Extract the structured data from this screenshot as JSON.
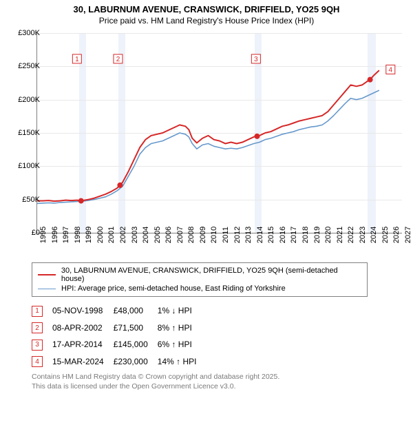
{
  "header": {
    "title": "30, LABURNUM AVENUE, CRANSWICK, DRIFFIELD, YO25 9QH",
    "subtitle": "Price paid vs. HM Land Registry's House Price Index (HPI)"
  },
  "chart": {
    "type": "line",
    "background_color": "#ffffff",
    "grid_color": "#e8e8e8",
    "axis_color": "#808080",
    "xlim": [
      1995,
      2027
    ],
    "ylim": [
      0,
      300000
    ],
    "ytick_step": 50000,
    "yticks": [
      {
        "v": 0,
        "label": "£0"
      },
      {
        "v": 50000,
        "label": "£50K"
      },
      {
        "v": 100000,
        "label": "£100K"
      },
      {
        "v": 150000,
        "label": "£150K"
      },
      {
        "v": 200000,
        "label": "£200K"
      },
      {
        "v": 250000,
        "label": "£250K"
      },
      {
        "v": 300000,
        "label": "£300K"
      }
    ],
    "xticks": [
      1995,
      1996,
      1997,
      1998,
      1999,
      2000,
      2001,
      2002,
      2003,
      2004,
      2005,
      2006,
      2007,
      2008,
      2009,
      2010,
      2011,
      2012,
      2013,
      2014,
      2015,
      2016,
      2017,
      2018,
      2019,
      2020,
      2021,
      2022,
      2023,
      2024,
      2025,
      2026,
      2027
    ],
    "shade_bands": [
      {
        "from": 1998.7,
        "to": 1999.3
      },
      {
        "from": 2002.1,
        "to": 2002.7
      },
      {
        "from": 2014.1,
        "to": 2014.7
      },
      {
        "from": 2024.0,
        "to": 2024.7
      }
    ],
    "series": [
      {
        "name": "price_paid",
        "label": "30, LABURNUM AVENUE, CRANSWICK, DRIFFIELD, YO25 9QH (semi-detached house)",
        "color": "#d62728",
        "line_width": 2,
        "points": [
          [
            1995.0,
            48000
          ],
          [
            1995.5,
            48000
          ],
          [
            1996.0,
            48500
          ],
          [
            1996.5,
            47500
          ],
          [
            1997.0,
            48000
          ],
          [
            1997.5,
            49000
          ],
          [
            1998.0,
            48500
          ],
          [
            1998.5,
            49000
          ],
          [
            1998.85,
            48000
          ],
          [
            1999.0,
            48500
          ],
          [
            1999.5,
            50000
          ],
          [
            2000.0,
            52000
          ],
          [
            2000.5,
            55000
          ],
          [
            2001.0,
            58000
          ],
          [
            2001.5,
            62000
          ],
          [
            2002.0,
            67000
          ],
          [
            2002.27,
            71500
          ],
          [
            2002.5,
            76000
          ],
          [
            2003.0,
            92000
          ],
          [
            2003.5,
            110000
          ],
          [
            2004.0,
            128000
          ],
          [
            2004.5,
            140000
          ],
          [
            2005.0,
            146000
          ],
          [
            2005.5,
            148000
          ],
          [
            2006.0,
            150000
          ],
          [
            2006.5,
            154000
          ],
          [
            2007.0,
            158000
          ],
          [
            2007.5,
            162000
          ],
          [
            2008.0,
            160000
          ],
          [
            2008.3,
            155000
          ],
          [
            2008.6,
            142000
          ],
          [
            2009.0,
            135000
          ],
          [
            2009.5,
            142000
          ],
          [
            2010.0,
            146000
          ],
          [
            2010.5,
            140000
          ],
          [
            2011.0,
            138000
          ],
          [
            2011.5,
            134000
          ],
          [
            2012.0,
            136000
          ],
          [
            2012.5,
            134000
          ],
          [
            2013.0,
            136000
          ],
          [
            2013.5,
            140000
          ],
          [
            2014.0,
            144000
          ],
          [
            2014.29,
            145000
          ],
          [
            2014.5,
            146000
          ],
          [
            2015.0,
            150000
          ],
          [
            2015.5,
            152000
          ],
          [
            2016.0,
            156000
          ],
          [
            2016.5,
            160000
          ],
          [
            2017.0,
            162000
          ],
          [
            2017.5,
            165000
          ],
          [
            2018.0,
            168000
          ],
          [
            2018.5,
            170000
          ],
          [
            2019.0,
            172000
          ],
          [
            2019.5,
            174000
          ],
          [
            2020.0,
            176000
          ],
          [
            2020.5,
            182000
          ],
          [
            2021.0,
            192000
          ],
          [
            2021.5,
            202000
          ],
          [
            2022.0,
            212000
          ],
          [
            2022.5,
            222000
          ],
          [
            2023.0,
            220000
          ],
          [
            2023.5,
            222000
          ],
          [
            2024.0,
            228000
          ],
          [
            2024.2,
            230000
          ],
          [
            2024.5,
            236000
          ],
          [
            2025.0,
            244000
          ]
        ]
      },
      {
        "name": "hpi",
        "label": "HPI: Average price, semi-detached house, East Riding of Yorkshire",
        "color": "#6699cc",
        "line_width": 1.6,
        "points": [
          [
            1995.0,
            44000
          ],
          [
            1995.5,
            44500
          ],
          [
            1996.0,
            45000
          ],
          [
            1996.5,
            44500
          ],
          [
            1997.0,
            45500
          ],
          [
            1997.5,
            46000
          ],
          [
            1998.0,
            46500
          ],
          [
            1998.5,
            47000
          ],
          [
            1999.0,
            47500
          ],
          [
            1999.5,
            48500
          ],
          [
            2000.0,
            50000
          ],
          [
            2000.5,
            52000
          ],
          [
            2001.0,
            54000
          ],
          [
            2001.5,
            58000
          ],
          [
            2002.0,
            63000
          ],
          [
            2002.5,
            70000
          ],
          [
            2003.0,
            85000
          ],
          [
            2003.5,
            100000
          ],
          [
            2004.0,
            118000
          ],
          [
            2004.5,
            128000
          ],
          [
            2005.0,
            134000
          ],
          [
            2005.5,
            136000
          ],
          [
            2006.0,
            138000
          ],
          [
            2006.5,
            142000
          ],
          [
            2007.0,
            146000
          ],
          [
            2007.5,
            150000
          ],
          [
            2008.0,
            148000
          ],
          [
            2008.3,
            144000
          ],
          [
            2008.6,
            134000
          ],
          [
            2009.0,
            126000
          ],
          [
            2009.5,
            132000
          ],
          [
            2010.0,
            134000
          ],
          [
            2010.5,
            130000
          ],
          [
            2011.0,
            128000
          ],
          [
            2011.5,
            126000
          ],
          [
            2012.0,
            127000
          ],
          [
            2012.5,
            126000
          ],
          [
            2013.0,
            128000
          ],
          [
            2013.5,
            131000
          ],
          [
            2014.0,
            134000
          ],
          [
            2014.5,
            136000
          ],
          [
            2015.0,
            140000
          ],
          [
            2015.5,
            142000
          ],
          [
            2016.0,
            145000
          ],
          [
            2016.5,
            148000
          ],
          [
            2017.0,
            150000
          ],
          [
            2017.5,
            152000
          ],
          [
            2018.0,
            155000
          ],
          [
            2018.5,
            157000
          ],
          [
            2019.0,
            159000
          ],
          [
            2019.5,
            160000
          ],
          [
            2020.0,
            162000
          ],
          [
            2020.5,
            168000
          ],
          [
            2021.0,
            176000
          ],
          [
            2021.5,
            185000
          ],
          [
            2022.0,
            194000
          ],
          [
            2022.5,
            202000
          ],
          [
            2023.0,
            200000
          ],
          [
            2023.5,
            202000
          ],
          [
            2024.0,
            206000
          ],
          [
            2024.5,
            210000
          ],
          [
            2025.0,
            214000
          ]
        ]
      }
    ],
    "event_markers": [
      {
        "n": 1,
        "x": 1998.85,
        "y": 48000,
        "box_x": 1998.1,
        "box_y": 268000
      },
      {
        "n": 2,
        "x": 2002.27,
        "y": 71500,
        "box_x": 2001.7,
        "box_y": 268000
      },
      {
        "n": 3,
        "x": 2014.29,
        "y": 145000,
        "box_x": 2013.8,
        "box_y": 268000
      },
      {
        "n": 4,
        "x": 2024.2,
        "y": 230000,
        "box_x": 2025.6,
        "box_y": 252000
      }
    ],
    "marker_color": "#d62728",
    "marker_dot_radius": 4,
    "marker_box_size": 13,
    "axis_font_size": 11
  },
  "legend": {
    "border_color": "#808080",
    "items": [
      {
        "color": "#d62728",
        "width": 2,
        "label": "30, LABURNUM AVENUE, CRANSWICK, DRIFFIELD, YO25 9QH (semi-detached house)"
      },
      {
        "color": "#6699cc",
        "width": 1.6,
        "label": "HPI: Average price, semi-detached house, East Riding of Yorkshire"
      }
    ]
  },
  "events_table": {
    "marker_border_color": "#d62728",
    "marker_text_color": "#d62728",
    "hpi_label": "HPI",
    "rows": [
      {
        "n": "1",
        "date": "05-NOV-1998",
        "price": "£48,000",
        "pct": "1%",
        "dir": "↓"
      },
      {
        "n": "2",
        "date": "08-APR-2002",
        "price": "£71,500",
        "pct": "8%",
        "dir": "↑"
      },
      {
        "n": "3",
        "date": "17-APR-2014",
        "price": "£145,000",
        "pct": "6%",
        "dir": "↑"
      },
      {
        "n": "4",
        "date": "15-MAR-2024",
        "price": "£230,000",
        "pct": "14%",
        "dir": "↑"
      }
    ]
  },
  "license": {
    "line1": "Contains HM Land Registry data © Crown copyright and database right 2025.",
    "line2": "This data is licensed under the Open Government Licence v3.0."
  }
}
